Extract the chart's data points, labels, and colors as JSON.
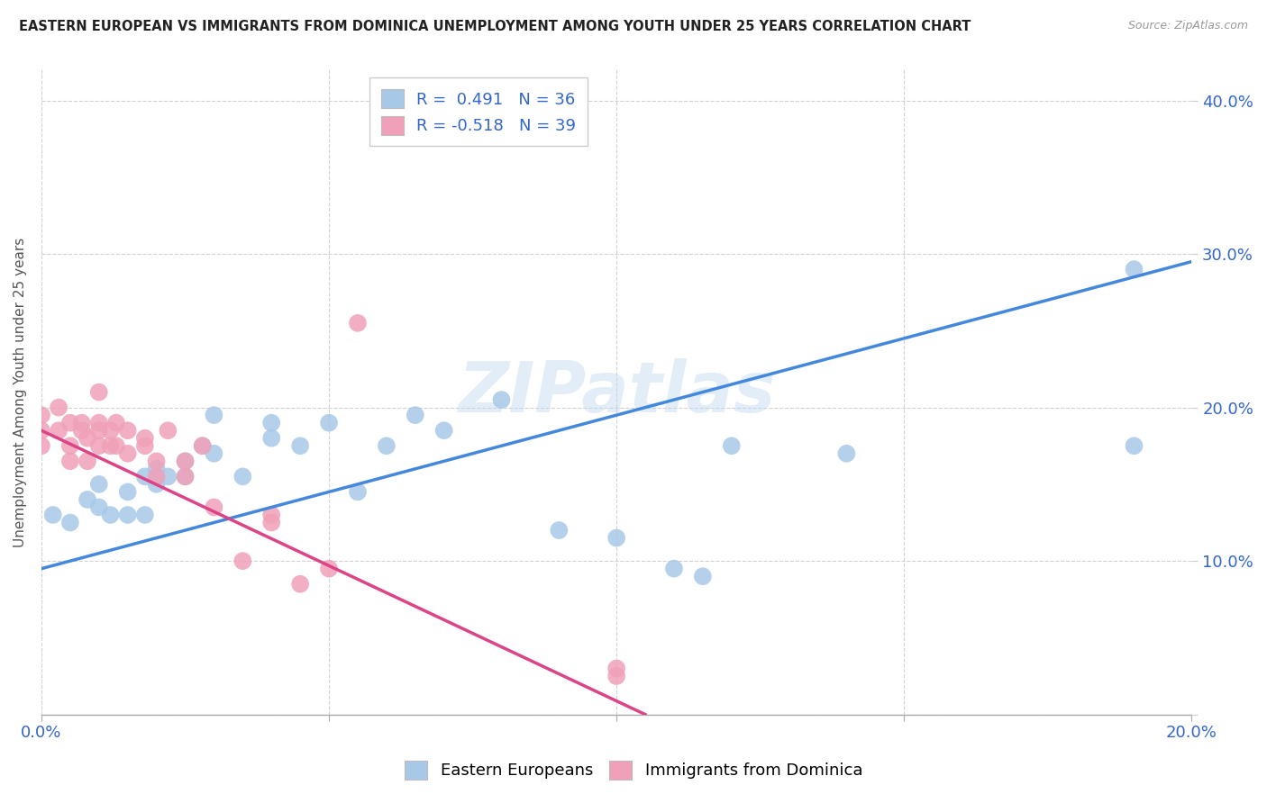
{
  "title": "EASTERN EUROPEAN VS IMMIGRANTS FROM DOMINICA UNEMPLOYMENT AMONG YOUTH UNDER 25 YEARS CORRELATION CHART",
  "source": "Source: ZipAtlas.com",
  "ylabel": "Unemployment Among Youth under 25 years",
  "xlim": [
    0.0,
    0.2
  ],
  "ylim": [
    0.0,
    0.42
  ],
  "blue_R": 0.491,
  "blue_N": 36,
  "pink_R": -0.518,
  "pink_N": 39,
  "blue_color": "#a8c8e8",
  "pink_color": "#f0a0b8",
  "blue_line_color": "#4488dd",
  "pink_line_color": "#dd4488",
  "watermark": "ZIPatlas",
  "blue_scatter_x": [
    0.002,
    0.005,
    0.008,
    0.01,
    0.01,
    0.012,
    0.015,
    0.015,
    0.018,
    0.018,
    0.02,
    0.02,
    0.022,
    0.025,
    0.025,
    0.028,
    0.03,
    0.03,
    0.035,
    0.04,
    0.04,
    0.045,
    0.05,
    0.055,
    0.06,
    0.065,
    0.07,
    0.08,
    0.09,
    0.1,
    0.11,
    0.115,
    0.12,
    0.14,
    0.19,
    0.19
  ],
  "blue_scatter_y": [
    0.13,
    0.125,
    0.14,
    0.135,
    0.15,
    0.13,
    0.13,
    0.145,
    0.13,
    0.155,
    0.15,
    0.16,
    0.155,
    0.155,
    0.165,
    0.175,
    0.17,
    0.195,
    0.155,
    0.18,
    0.19,
    0.175,
    0.19,
    0.145,
    0.175,
    0.195,
    0.185,
    0.205,
    0.12,
    0.115,
    0.095,
    0.09,
    0.175,
    0.17,
    0.175,
    0.29
  ],
  "pink_scatter_x": [
    0.0,
    0.0,
    0.0,
    0.003,
    0.003,
    0.005,
    0.005,
    0.005,
    0.007,
    0.007,
    0.008,
    0.008,
    0.01,
    0.01,
    0.01,
    0.01,
    0.012,
    0.012,
    0.013,
    0.013,
    0.015,
    0.015,
    0.018,
    0.018,
    0.02,
    0.02,
    0.022,
    0.025,
    0.025,
    0.028,
    0.03,
    0.035,
    0.04,
    0.04,
    0.045,
    0.05,
    0.055,
    0.1,
    0.1
  ],
  "pink_scatter_y": [
    0.185,
    0.195,
    0.175,
    0.185,
    0.2,
    0.19,
    0.175,
    0.165,
    0.185,
    0.19,
    0.165,
    0.18,
    0.175,
    0.185,
    0.19,
    0.21,
    0.175,
    0.185,
    0.175,
    0.19,
    0.17,
    0.185,
    0.175,
    0.18,
    0.155,
    0.165,
    0.185,
    0.155,
    0.165,
    0.175,
    0.135,
    0.1,
    0.125,
    0.13,
    0.085,
    0.095,
    0.255,
    0.03,
    0.025
  ],
  "blue_trendline_x": [
    0.0,
    0.2
  ],
  "blue_trendline_y": [
    0.095,
    0.295
  ],
  "pink_trendline_x": [
    0.0,
    0.105
  ],
  "pink_trendline_y": [
    0.185,
    0.0
  ]
}
